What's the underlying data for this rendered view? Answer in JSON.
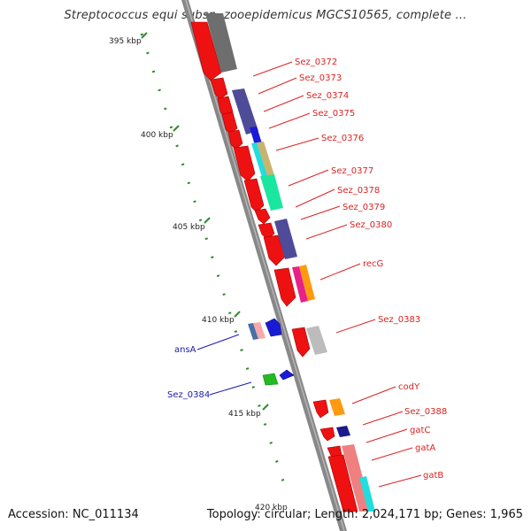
{
  "title": "Streptococcus equi subsp. zooepidemicus MGCS10565, complete ...",
  "accession": "Accession: NC_011134",
  "summary": "Topology: circular; Length: 2,024,171 bp; Genes: 1,965",
  "colors": {
    "forward_label": "#dd2222",
    "reverse_label": "#1a1aaa",
    "tick": "#2e8b2e",
    "backbone": "#8c8c8c"
  },
  "scale_ticks": [
    {
      "label": "395 kbp"
    },
    {
      "label": "400 kbp"
    },
    {
      "label": "405 kbp"
    },
    {
      "label": "410 kbp"
    },
    {
      "label": "415 kbp"
    },
    {
      "label": "420 kbp"
    }
  ],
  "forward_genes": [
    {
      "label": "Sez_0372"
    },
    {
      "label": "Sez_0373"
    },
    {
      "label": "Sez_0374"
    },
    {
      "label": "Sez_0375"
    },
    {
      "label": "Sez_0376"
    },
    {
      "label": "Sez_0377"
    },
    {
      "label": "Sez_0378"
    },
    {
      "label": "Sez_0379"
    },
    {
      "label": "Sez_0380"
    },
    {
      "label": "recG"
    },
    {
      "label": "Sez_0383"
    },
    {
      "label": "codY"
    },
    {
      "label": "Sez_0388"
    },
    {
      "label": "gatC"
    },
    {
      "label": "gatA"
    },
    {
      "label": "gatB"
    }
  ],
  "reverse_genes": [
    {
      "label": "ansA"
    },
    {
      "label": "Sez_0384"
    }
  ]
}
